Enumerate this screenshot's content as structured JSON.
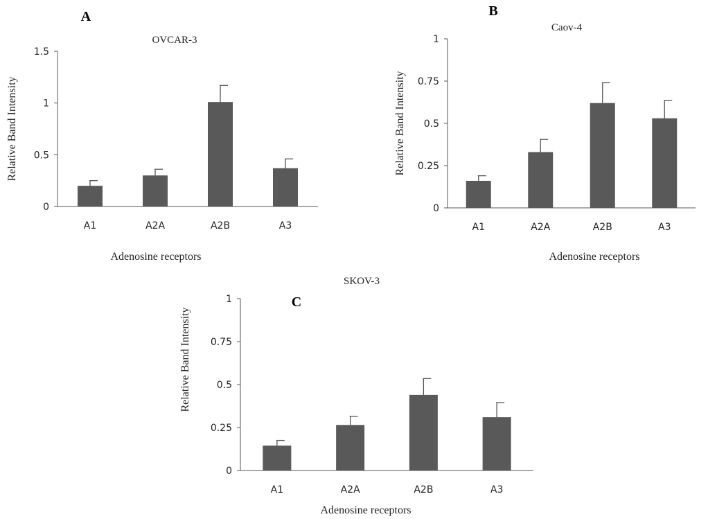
{
  "chart_data": [
    {
      "panel": "A",
      "type": "bar",
      "title": "OVCAR-3",
      "xlabel": "Adenosine receptors",
      "ylabel": "Relative Band Intensity",
      "categories": [
        "A1",
        "A2A",
        "A2B",
        "A3"
      ],
      "values": [
        0.2,
        0.3,
        1.01,
        0.37
      ],
      "errors": [
        0.05,
        0.06,
        0.16,
        0.09
      ],
      "ylim": [
        0,
        1.5
      ],
      "yticks": [
        0,
        0.5,
        1,
        1.5
      ],
      "ytick_labels": [
        "0",
        "0.5",
        "1",
        "1.5"
      ],
      "bar_color": "#595959",
      "grid": false,
      "legend": false
    },
    {
      "panel": "B",
      "type": "bar",
      "title": "Caov-4",
      "xlabel": "Adenosine receptors",
      "ylabel": "Relative Band Intensity",
      "categories": [
        "A1",
        "A2A",
        "A2B",
        "A3"
      ],
      "values": [
        0.16,
        0.33,
        0.62,
        0.53
      ],
      "errors": [
        0.03,
        0.075,
        0.12,
        0.105
      ],
      "ylim": [
        0,
        1
      ],
      "yticks": [
        0,
        0.25,
        0.5,
        0.75,
        1
      ],
      "ytick_labels": [
        "0",
        "0.25",
        "0.5",
        "0.75",
        "1"
      ],
      "bar_color": "#595959",
      "grid": false,
      "legend": false
    },
    {
      "panel": "C",
      "type": "bar",
      "title": "SKOV-3",
      "xlabel": "Adenosine receptors",
      "ylabel": "Relative Band Intensity",
      "categories": [
        "A1",
        "A2A",
        "A2B",
        "A3"
      ],
      "values": [
        0.145,
        0.265,
        0.44,
        0.31
      ],
      "errors": [
        0.03,
        0.05,
        0.095,
        0.085
      ],
      "ylim": [
        0,
        1
      ],
      "yticks": [
        0,
        0.25,
        0.5,
        0.75,
        1
      ],
      "ytick_labels": [
        "0",
        "0.25",
        "0.5",
        "0.75",
        "1"
      ],
      "bar_color": "#595959",
      "grid": false,
      "legend": false
    }
  ]
}
